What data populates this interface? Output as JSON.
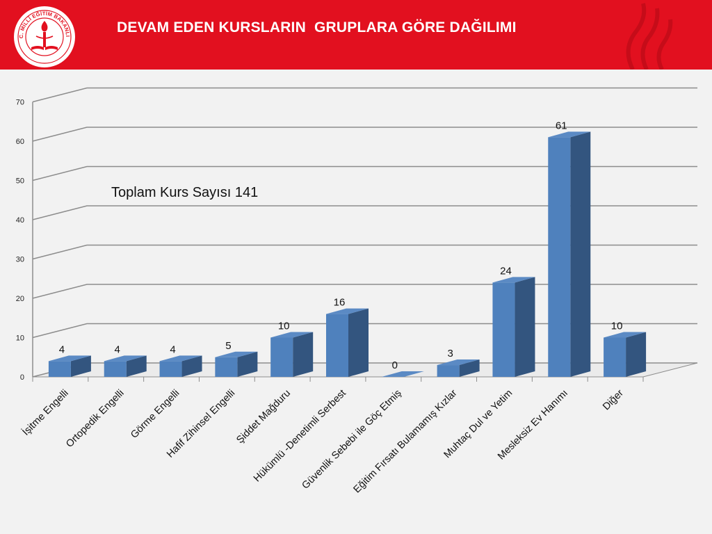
{
  "header": {
    "title": "DEVAM EDEN KURSLARIN  GRUPLARA GÖRE DAĞILIMI",
    "logo_text": "T.C. MİLLÎ EĞİTİM BAKANLIĞI",
    "background": "#e2101f"
  },
  "chart_data": {
    "type": "bar",
    "categories": [
      "İşitme Engelli",
      "Ortopedik Engelli",
      "Görme Engelli",
      "Hafif Zihinsel Engelli",
      "Şiddet Mağduru",
      "Hükümlü -Denetimli Serbest",
      "Güvenlik Sebebi ile Göç Etmiş",
      "Eğitim  Fırsatı Bulamamış Kızlar",
      "Muhtaç Dul ve Yetim",
      "Mesleksiz  Ev Hanımı",
      "Diğer"
    ],
    "values": [
      4,
      4,
      4,
      5,
      10,
      16,
      0,
      3,
      24,
      61,
      10
    ],
    "data_labels": [
      "4",
      "4",
      "4",
      "5",
      "10",
      "16",
      "0",
      "3",
      "24",
      "61",
      "10"
    ],
    "y_ticks": [
      "0",
      "10",
      "20",
      "30",
      "40",
      "50",
      "60",
      "70"
    ],
    "ylim": [
      0,
      70
    ],
    "annotation": "Toplam Kurs Sayısı 141",
    "grid": true,
    "legend": "none",
    "bar_color": "#4f81bd",
    "bar_side_color": "#33557f",
    "bar_top_color": "#5b8ac4"
  }
}
